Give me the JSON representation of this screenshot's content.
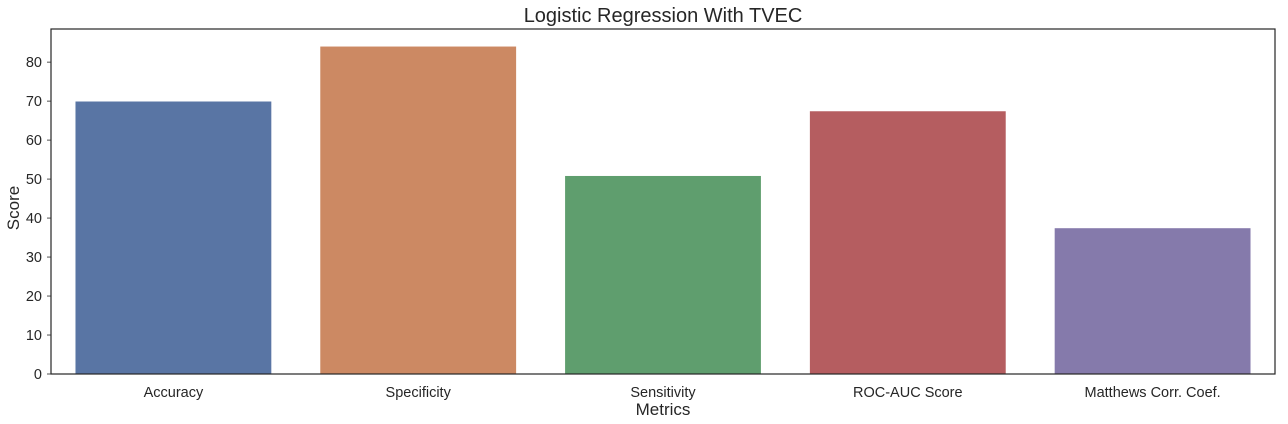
{
  "chart_data": {
    "type": "bar",
    "title": "Logistic Regression With TVEC",
    "xlabel": "Metrics",
    "ylabel": "Score",
    "categories": [
      "Accuracy",
      "Specificity",
      "Sensitivity",
      "ROC-AUC Score",
      "Matthews Corr. Coef."
    ],
    "values": [
      69.9,
      84.0,
      50.8,
      67.4,
      37.4
    ],
    "colors": [
      "#5975a4",
      "#cc8963",
      "#5f9e6e",
      "#b55d60",
      "#857aab"
    ],
    "ylim": [
      0,
      88.5
    ],
    "yticks": [
      0,
      10,
      20,
      30,
      40,
      50,
      60,
      70,
      80
    ],
    "grid": false,
    "legend": "none"
  }
}
